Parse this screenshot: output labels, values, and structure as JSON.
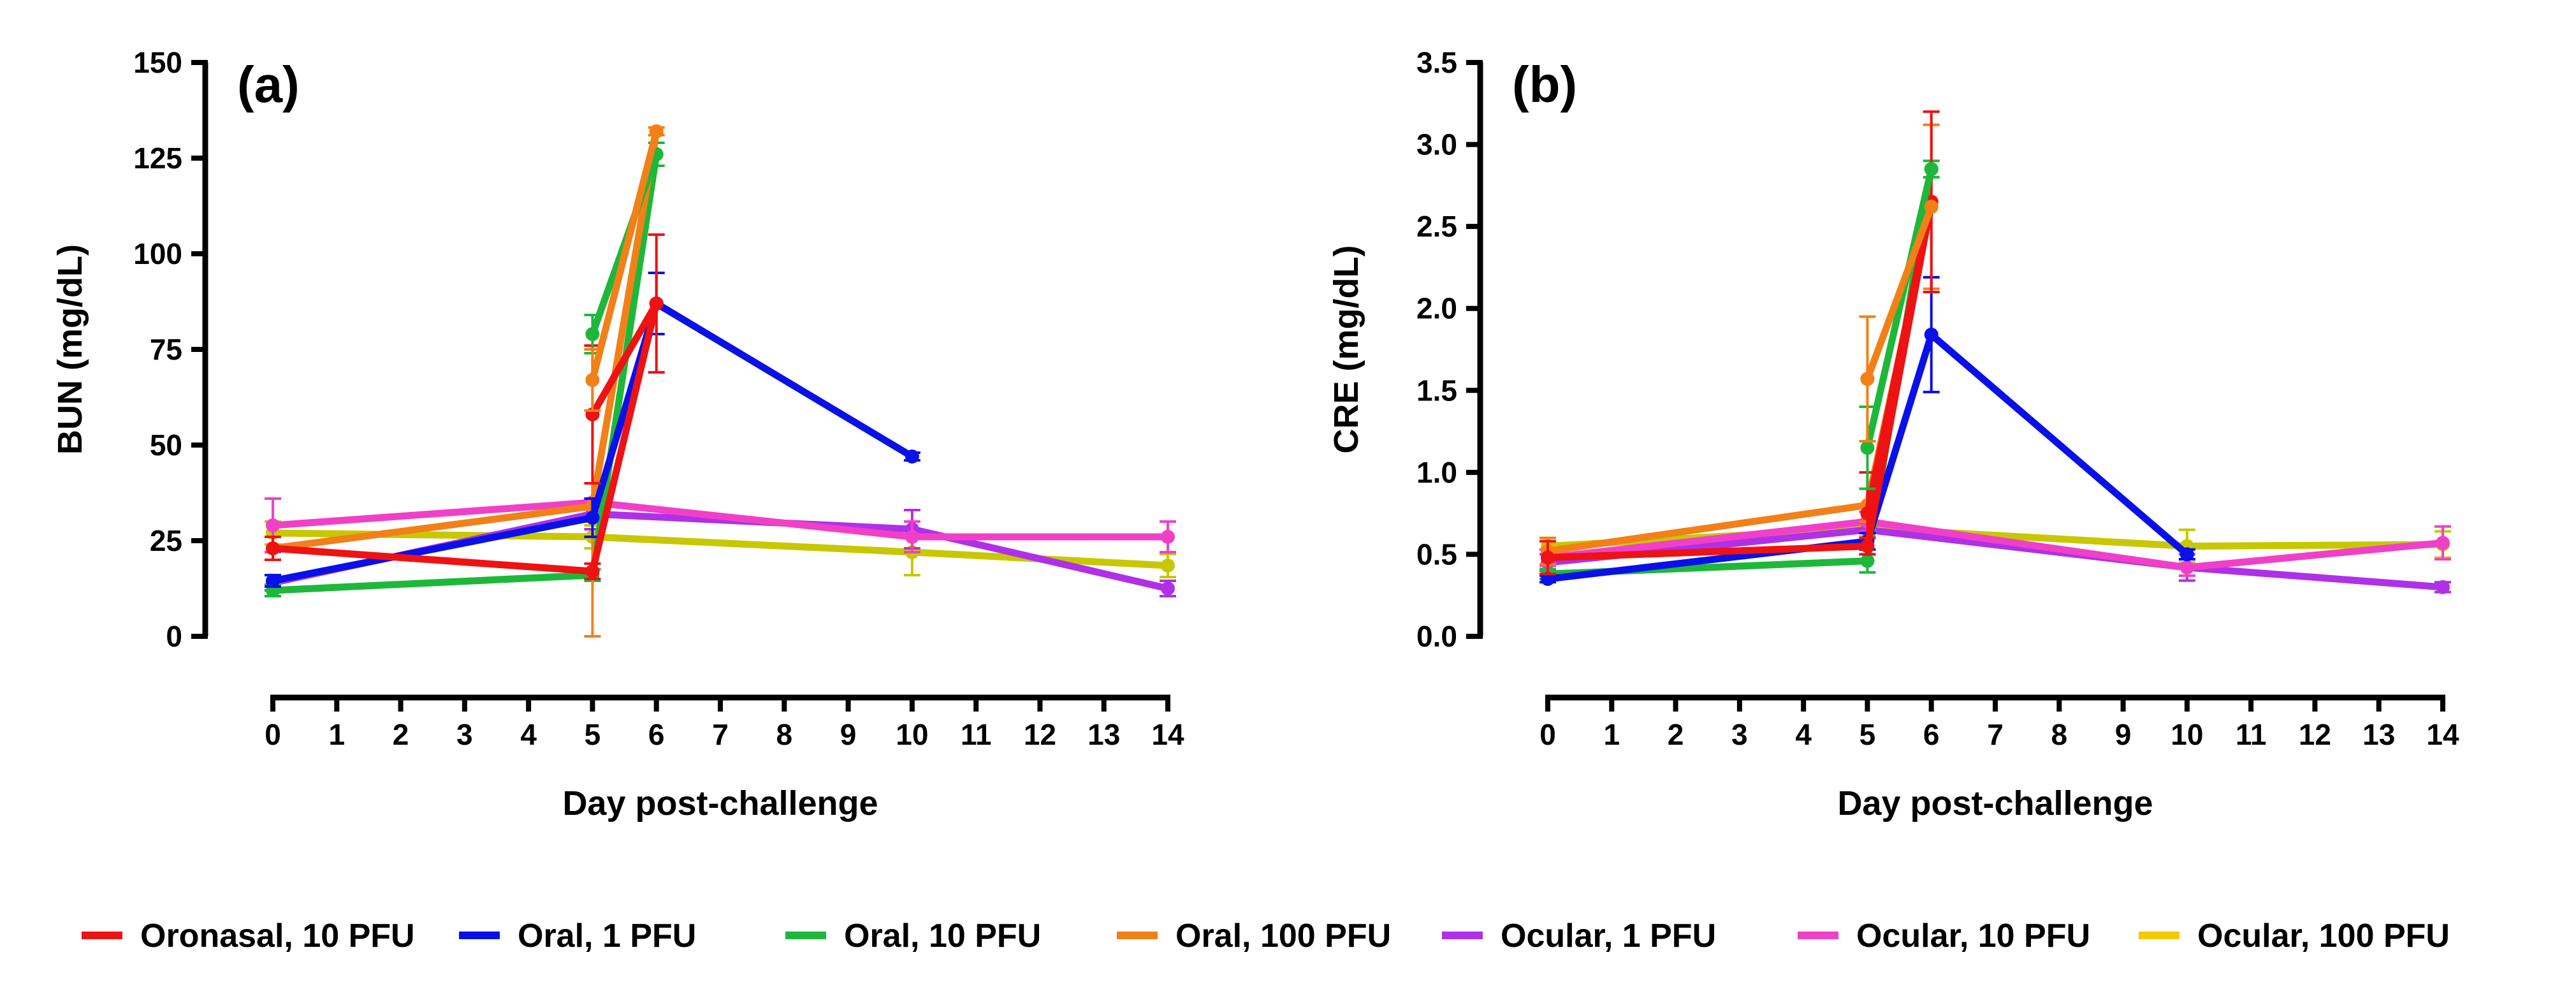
{
  "chart_data": [
    {
      "type": "line",
      "panel_label": "(a)",
      "xlabel": "Day post-challenge",
      "ylabel": "BUN (mg/dL)",
      "xlim": [
        0,
        14
      ],
      "ylim": [
        0,
        150
      ],
      "xticks": [
        0,
        1,
        2,
        3,
        4,
        5,
        6,
        7,
        8,
        9,
        10,
        11,
        12,
        13,
        14
      ],
      "yticks": [
        0,
        25,
        50,
        75,
        100,
        125,
        150
      ],
      "grid": false,
      "series": [
        {
          "name": "Ocular, 100 PFU",
          "color": "#C8C800",
          "x": [
            0,
            5,
            10,
            14
          ],
          "y": [
            27,
            26,
            22,
            18.5
          ],
          "err": [
            3,
            3,
            6,
            3
          ]
        },
        {
          "name": "Ocular, 1 PFU",
          "color": "#B030E8",
          "x": [
            0,
            5,
            10,
            14
          ],
          "y": [
            14,
            32,
            28,
            12.5
          ],
          "err": [
            2,
            4,
            5,
            2
          ]
        },
        {
          "name": "Ocular, 10 PFU",
          "color": "#F040C8",
          "x": [
            0,
            5,
            10,
            14
          ],
          "y": [
            29,
            35,
            26,
            26
          ],
          "err": [
            7,
            5,
            4,
            4
          ]
        },
        {
          "name": "Oral, 10 PFU",
          "color": "#1DB83A",
          "x": [
            0,
            5,
            6
          ],
          "y": [
            12,
            16,
            126
          ],
          "err": [
            1.5,
            1.5,
            3
          ]
        },
        {
          "name": "Oral, 100 PFU",
          "color": "#F28018",
          "x": [
            0,
            5,
            6
          ],
          "y": [
            23,
            34,
            132
          ],
          "err": [
            3,
            40,
            1
          ]
        },
        {
          "name": "Oral, 1 PFU",
          "color": "#0A10E8",
          "x": [
            0,
            5,
            6,
            10
          ],
          "y": [
            14.5,
            31,
            87,
            47
          ],
          "err": [
            1.5,
            5,
            8,
            1
          ]
        },
        {
          "name": "Oronasal, 10 PFU",
          "color": "#EE1212",
          "x": [
            0,
            5,
            6
          ],
          "y": [
            23,
            17,
            87
          ],
          "err": [
            3,
            2,
            18
          ]
        },
        {
          "name": "Oronasal, 10 PFU (branch)",
          "color": "#EE1212",
          "x": [
            5,
            6
          ],
          "y": [
            58,
            87
          ],
          "err": [
            18,
            0
          ]
        },
        {
          "name": "Oral, 10 PFU (branch)",
          "color": "#1DB83A",
          "x": [
            5,
            6
          ],
          "y": [
            79,
            126
          ],
          "err": [
            5,
            0
          ]
        },
        {
          "name": "Oral, 100 PFU (branch)",
          "color": "#F28018",
          "x": [
            5,
            6
          ],
          "y": [
            67,
            132
          ],
          "err": [
            8,
            0
          ]
        }
      ]
    },
    {
      "type": "line",
      "panel_label": "(b)",
      "xlabel": "Day post-challenge",
      "ylabel": "CRE (mg/dL)",
      "xlim": [
        0,
        14
      ],
      "ylim": [
        0,
        3.5
      ],
      "xticks": [
        0,
        1,
        2,
        3,
        4,
        5,
        6,
        7,
        8,
        9,
        10,
        11,
        12,
        13,
        14
      ],
      "yticks": [
        "0.0",
        "0.5",
        "1.0",
        "1.5",
        "2.0",
        "2.5",
        "3.0",
        "3.5"
      ],
      "grid": false,
      "series": [
        {
          "name": "Ocular, 100 PFU",
          "color": "#C8C800",
          "x": [
            0,
            5,
            10,
            14
          ],
          "y": [
            0.55,
            0.66,
            0.55,
            0.56
          ],
          "err": [
            0.05,
            0.05,
            0.1,
            0.08
          ]
        },
        {
          "name": "Ocular, 1 PFU",
          "color": "#B030E8",
          "x": [
            0,
            5,
            10,
            14
          ],
          "y": [
            0.45,
            0.65,
            0.42,
            0.3
          ],
          "err": [
            0.05,
            0.05,
            0.08,
            0.03
          ]
        },
        {
          "name": "Ocular, 10 PFU",
          "color": "#F040C8",
          "x": [
            0,
            5,
            10,
            14
          ],
          "y": [
            0.48,
            0.7,
            0.42,
            0.57
          ],
          "err": [
            0.05,
            0.06,
            0.05,
            0.1
          ]
        },
        {
          "name": "Oral, 10 PFU",
          "color": "#1DB83A",
          "x": [
            0,
            5,
            6
          ],
          "y": [
            0.38,
            0.46,
            2.85
          ],
          "err": [
            0.03,
            0.07,
            0.05
          ]
        },
        {
          "name": "Oral, 100 PFU",
          "color": "#F28018",
          "x": [
            0,
            5,
            6
          ],
          "y": [
            0.52,
            0.8,
            2.62
          ],
          "err": [
            0.08,
            0.1,
            0.5
          ]
        },
        {
          "name": "Oral, 1 PFU",
          "color": "#0A10E8",
          "x": [
            0,
            5,
            6,
            10
          ],
          "y": [
            0.35,
            0.58,
            1.84,
            0.5
          ],
          "err": [
            0.02,
            0.05,
            0.35,
            0.03
          ]
        },
        {
          "name": "Oronasal, 10 PFU",
          "color": "#EE1212",
          "x": [
            0,
            5,
            6
          ],
          "y": [
            0.48,
            0.55,
            2.65
          ],
          "err": [
            0.1,
            0.05,
            0.55
          ]
        },
        {
          "name": "Oronasal, 10 PFU (branch)",
          "color": "#EE1212",
          "x": [
            5,
            6
          ],
          "y": [
            0.75,
            2.65
          ],
          "err": [
            0.25,
            0
          ]
        },
        {
          "name": "Oral, 10 PFU (branch)",
          "color": "#1DB83A",
          "x": [
            5,
            6
          ],
          "y": [
            1.15,
            2.85
          ],
          "err": [
            0.25,
            0
          ]
        },
        {
          "name": "Oral, 100 PFU (branch)",
          "color": "#F28018",
          "x": [
            5,
            6
          ],
          "y": [
            1.57,
            2.62
          ],
          "err": [
            0.38,
            0
          ]
        }
      ]
    }
  ],
  "legend": [
    {
      "label": "Oronasal, 10 PFU",
      "color": "#EE1212"
    },
    {
      "label": "Oral, 1 PFU",
      "color": "#0A10E8"
    },
    {
      "label": "Oral, 10 PFU",
      "color": "#1DB83A"
    },
    {
      "label": "Oral, 100 PFU",
      "color": "#F28018"
    },
    {
      "label": "Ocular, 1 PFU",
      "color": "#B030E8"
    },
    {
      "label": "Ocular, 10 PFU",
      "color": "#F040C8"
    },
    {
      "label": "Ocular, 100 PFU",
      "color": "#F5C800"
    }
  ]
}
